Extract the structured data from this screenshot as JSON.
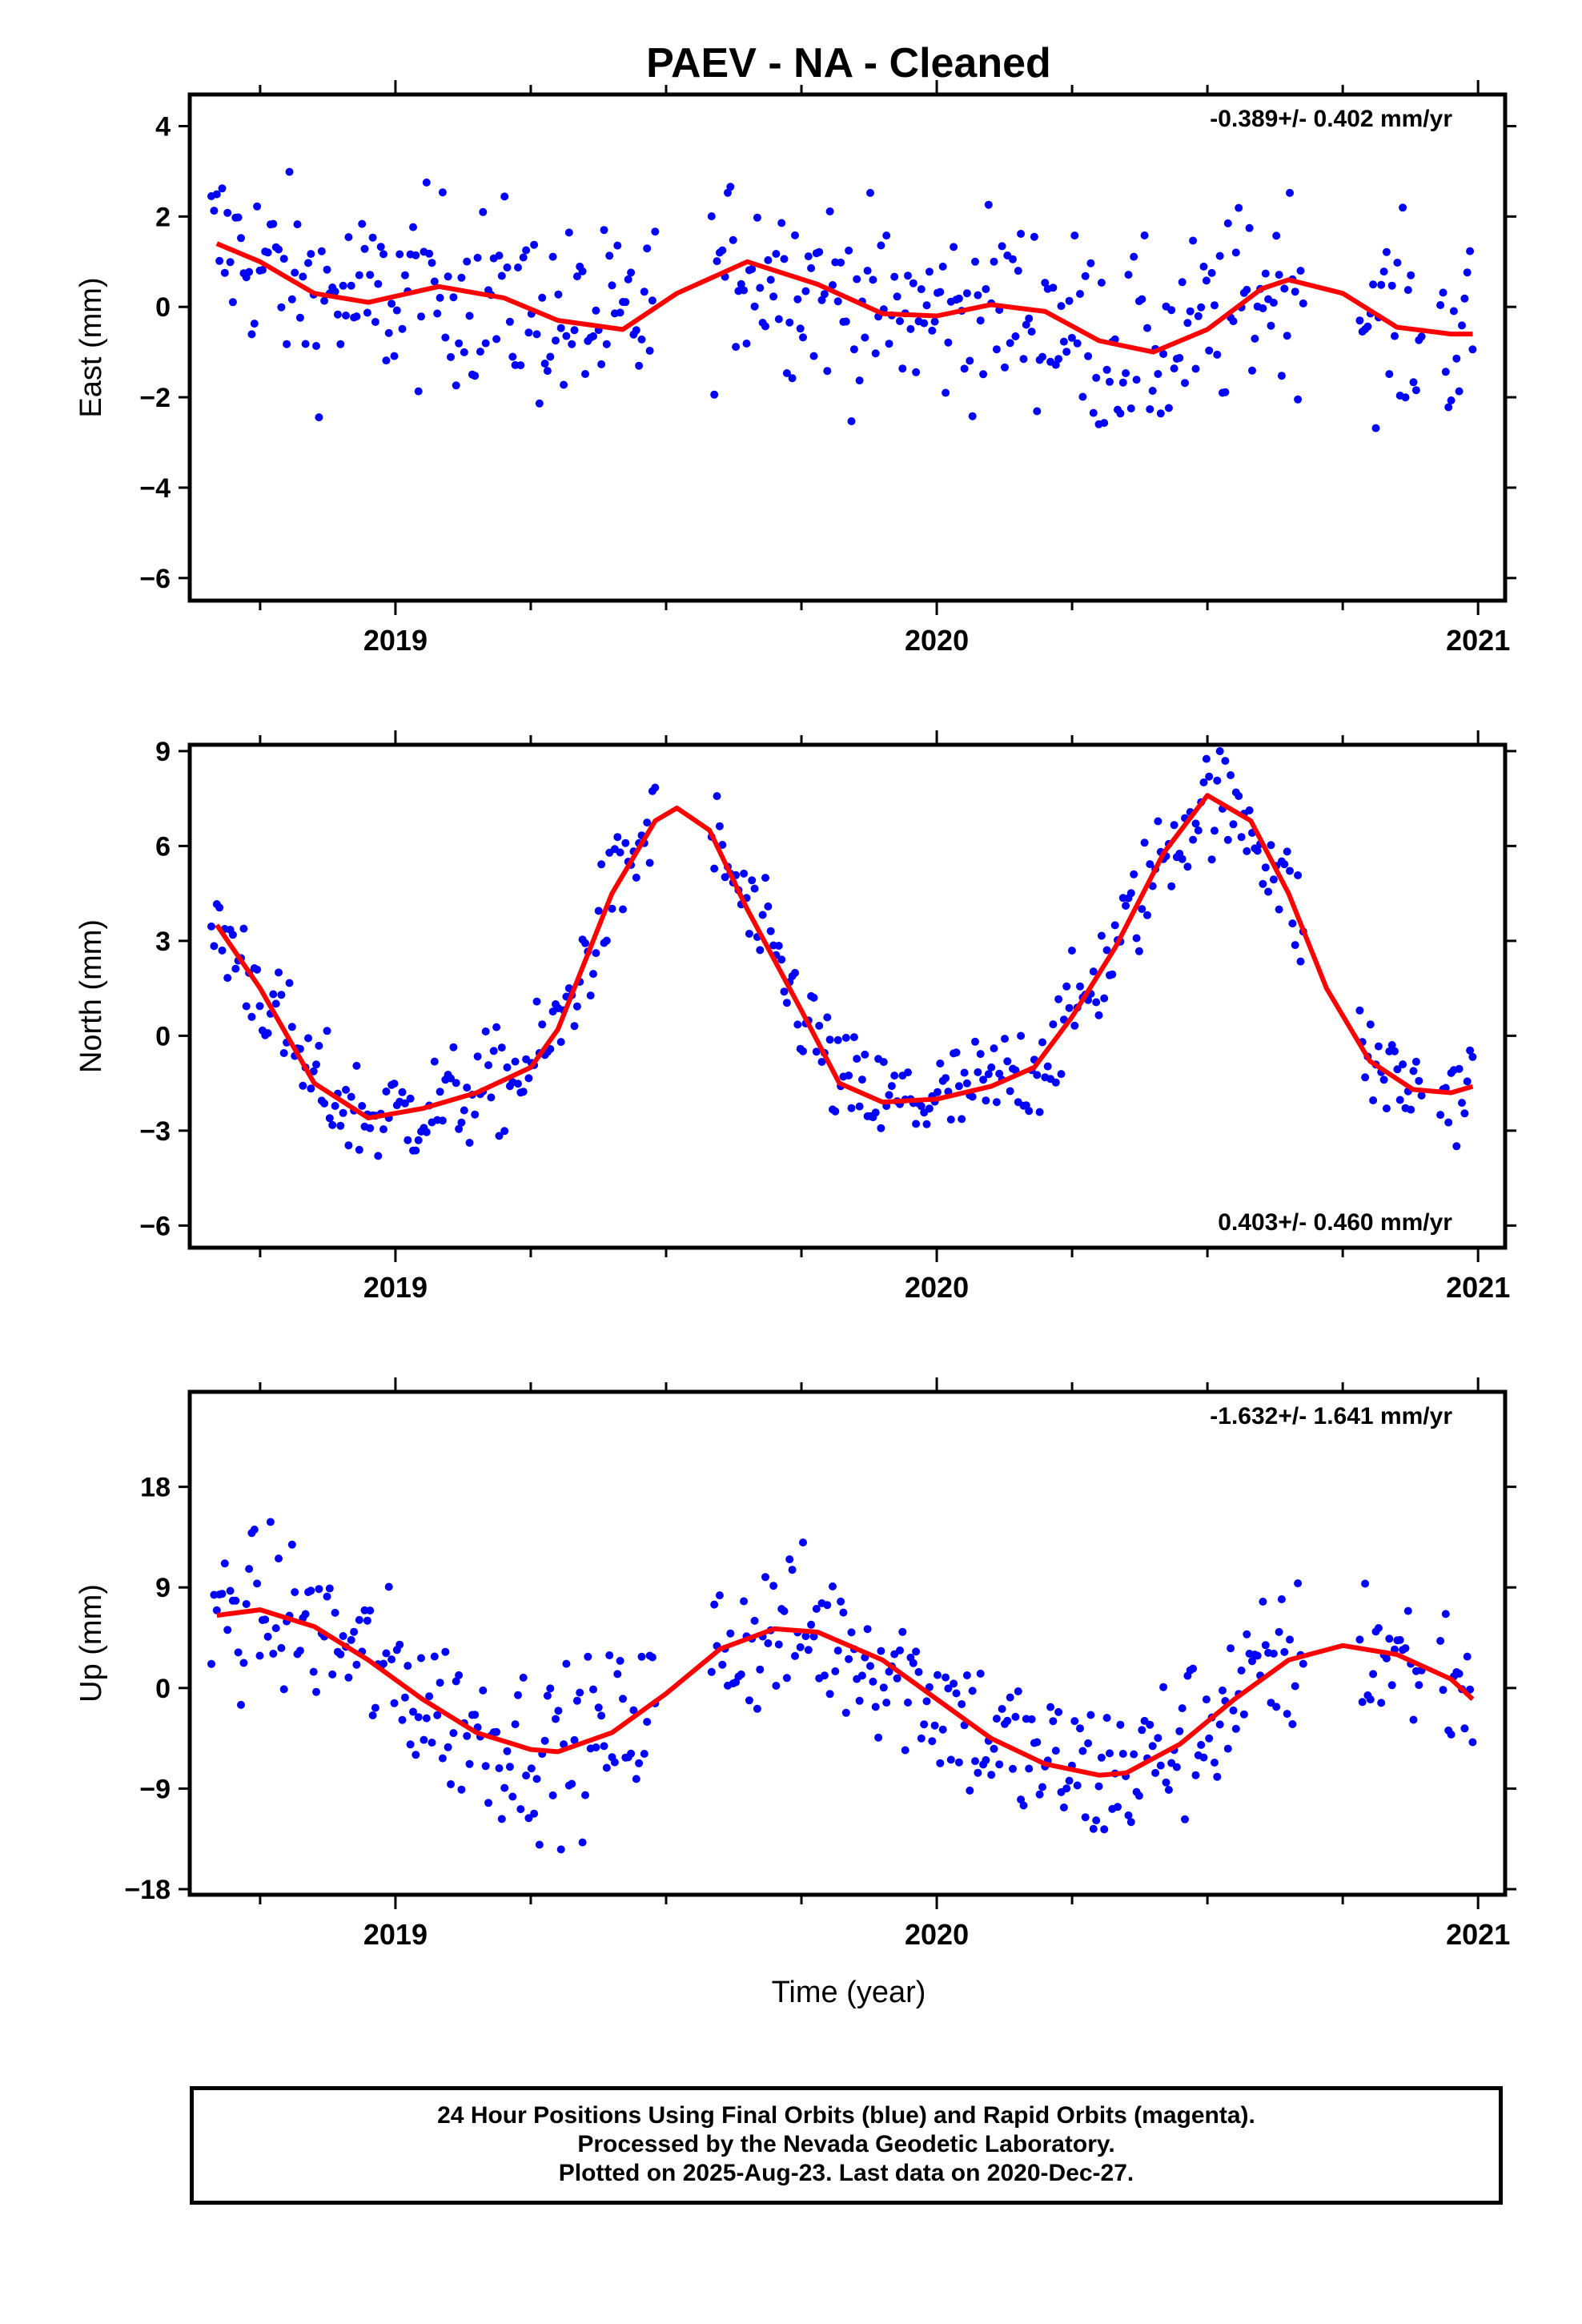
{
  "title": "PAEV  - NA - Cleaned",
  "x_label": "Time (year)",
  "caption": [
    "24 Hour Positions Using Final Orbits (blue) and Rapid Orbits (magenta).",
    "Processed by the Nevada Geodetic Laboratory.",
    "Plotted on 2025-Aug-23. Last data on 2020-Dec-27."
  ],
  "colors": {
    "points": "#0000ff",
    "fit": "#ff0000",
    "axes": "#000000"
  },
  "chart_data": [
    {
      "type": "scatter",
      "component": "East",
      "ylabel": "East (mm)",
      "rate_label": "-0.389+/- 0.402 mm/yr",
      "rate_position": "top-right",
      "xlim": [
        2018.62,
        2021.05
      ],
      "ylim": [
        -6.5,
        4.7
      ],
      "yticks": [
        4,
        2,
        0,
        -2,
        -4,
        -6
      ],
      "xticks": [
        "2019",
        "2020",
        "2021"
      ],
      "fit_curve": {
        "x": [
          2018.67,
          2018.75,
          2018.85,
          2018.95,
          2019.08,
          2019.2,
          2019.3,
          2019.42,
          2019.52,
          2019.65,
          2019.78,
          2019.9,
          2020.0,
          2020.1,
          2020.2,
          2020.3,
          2020.4,
          2020.5,
          2020.6,
          2020.65,
          2020.75,
          2020.85,
          2020.95,
          2020.99
        ],
        "y": [
          1.4,
          1.0,
          0.3,
          0.1,
          0.45,
          0.2,
          -0.3,
          -0.5,
          0.3,
          1.0,
          0.5,
          -0.15,
          -0.2,
          0.05,
          -0.1,
          -0.75,
          -1.0,
          -0.5,
          0.4,
          0.6,
          0.3,
          -0.45,
          -0.6,
          -0.6
        ]
      },
      "points": {
        "x_range": [
          2018.66,
          2020.99
        ],
        "gaps": [
          [
            2019.48,
            2019.58
          ],
          [
            2020.68,
            2020.78
          ],
          [
            2020.9,
            2020.93
          ]
        ],
        "count": 470
      }
    },
    {
      "type": "scatter",
      "component": "North",
      "ylabel": "North (mm)",
      "rate_label": "0.403+/- 0.460 mm/yr",
      "rate_position": "bottom-right",
      "xlim": [
        2018.62,
        2021.05
      ],
      "ylim": [
        -6.7,
        9.2
      ],
      "yticks": [
        9,
        6,
        3,
        0,
        -3,
        -6
      ],
      "xticks": [
        "2019",
        "2020",
        "2021"
      ],
      "fit_curve": {
        "x": [
          2018.67,
          2018.75,
          2018.85,
          2018.95,
          2019.05,
          2019.15,
          2019.25,
          2019.3,
          2019.4,
          2019.48,
          2019.52,
          2019.58,
          2019.65,
          2019.75,
          2019.82,
          2019.9,
          2020.0,
          2020.1,
          2020.18,
          2020.25,
          2020.33,
          2020.42,
          2020.5,
          2020.58,
          2020.65,
          2020.72,
          2020.8,
          2020.88,
          2020.95,
          2020.99
        ],
        "y": [
          3.5,
          1.5,
          -1.5,
          -2.6,
          -2.3,
          -1.8,
          -1.0,
          0.2,
          4.5,
          6.8,
          7.2,
          6.5,
          4.0,
          0.8,
          -1.5,
          -2.1,
          -2.0,
          -1.6,
          -1.0,
          0.6,
          2.8,
          5.8,
          7.6,
          6.8,
          4.5,
          1.5,
          -0.8,
          -1.7,
          -1.8,
          -1.6
        ]
      },
      "points": {
        "x_range": [
          2018.66,
          2020.99
        ],
        "gaps": [
          [
            2019.48,
            2019.58
          ],
          [
            2020.68,
            2020.78
          ],
          [
            2020.9,
            2020.93
          ]
        ],
        "count": 470
      }
    },
    {
      "type": "scatter",
      "component": "Up",
      "ylabel": "Up (mm)",
      "rate_label": "-1.632+/- 1.641 mm/yr",
      "rate_position": "top-right",
      "xlim": [
        2018.62,
        2021.05
      ],
      "ylim": [
        -18.5,
        26.5
      ],
      "yticks": [
        18,
        9,
        0,
        -9,
        -18
      ],
      "xticks": [
        "2019",
        "2020",
        "2021"
      ],
      "fit_curve": {
        "x": [
          2018.67,
          2018.75,
          2018.85,
          2018.95,
          2019.05,
          2019.15,
          2019.25,
          2019.3,
          2019.4,
          2019.5,
          2019.6,
          2019.7,
          2019.78,
          2019.9,
          2020.0,
          2020.1,
          2020.2,
          2020.3,
          2020.35,
          2020.45,
          2020.55,
          2020.65,
          2020.75,
          2020.85,
          2020.95,
          2020.99
        ],
        "y": [
          6.5,
          7.0,
          5.5,
          2.5,
          -1.0,
          -4.0,
          -5.5,
          -5.7,
          -4.0,
          -0.5,
          3.5,
          5.3,
          5.0,
          2.5,
          -1.0,
          -4.5,
          -6.8,
          -7.8,
          -7.6,
          -5.0,
          -1.0,
          2.5,
          3.8,
          3.0,
          0.8,
          -1.0
        ]
      },
      "points": {
        "x_range": [
          2018.66,
          2020.99
        ],
        "gaps": [
          [
            2019.48,
            2019.58
          ],
          [
            2020.68,
            2020.78
          ],
          [
            2020.9,
            2020.93
          ]
        ],
        "count": 470
      }
    }
  ]
}
